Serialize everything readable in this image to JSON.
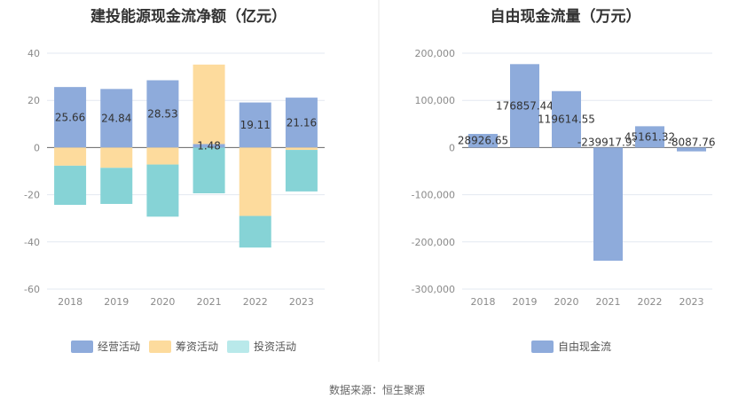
{
  "charts": {
    "left": {
      "title": "建投能源现金流净额（亿元）"
    },
    "right": {
      "title": "自由现金流量（万元）"
    }
  },
  "source": "数据来源：恒生聚源",
  "colors": {
    "operating": "#8eabdb",
    "financing": "#fddb9d",
    "investing": "#86d3d6",
    "investing_legend": "#b9e9ea",
    "fcf": "#8eabdb",
    "grid": "#e3e8f1",
    "axis": "#666666",
    "divider": "#e8e8e8"
  },
  "chart_data": [
    {
      "type": "bar",
      "stacked": true,
      "title": "建投能源现金流净额（亿元）",
      "categories": [
        "2018",
        "2019",
        "2020",
        "2021",
        "2022",
        "2023"
      ],
      "series": [
        {
          "name": "经营活动",
          "values": [
            25.66,
            24.84,
            28.53,
            1.48,
            19.11,
            21.16
          ]
        },
        {
          "name": "筹资活动",
          "values": [
            -7.7,
            -8.6,
            -7.2,
            33.7,
            -29.0,
            -1.0
          ]
        },
        {
          "name": "投资活动",
          "values": [
            -16.6,
            -15.3,
            -22.1,
            -19.4,
            -13.4,
            -17.6
          ]
        }
      ],
      "data_labels": [
        "25.66",
        "24.84",
        "28.53",
        "1.48",
        "19.11",
        "21.16"
      ],
      "ylim": [
        -60,
        40
      ],
      "yticks": [
        -60,
        -40,
        -20,
        0,
        20,
        40
      ],
      "grid": true,
      "legend_position": "bottom"
    },
    {
      "type": "bar",
      "title": "自由现金流量（万元）",
      "categories": [
        "2018",
        "2019",
        "2020",
        "2021",
        "2022",
        "2023"
      ],
      "series": [
        {
          "name": "自由现金流",
          "values": [
            28926.65,
            176857.44,
            119614.55,
            -239917.93,
            45161.32,
            -8087.76
          ]
        }
      ],
      "data_labels": [
        "28926.65",
        "176857.44",
        "119614.55",
        "-239917.93",
        "45161.32",
        "-8087.76"
      ],
      "ylim": [
        -300000,
        200000
      ],
      "yticks": [
        -300000,
        -200000,
        -100000,
        0,
        100000,
        200000
      ],
      "ytick_labels": [
        "-300,000",
        "-200,000",
        "-100,000",
        "0",
        "100,000",
        "200,000"
      ],
      "grid": true,
      "legend_position": "bottom"
    }
  ]
}
